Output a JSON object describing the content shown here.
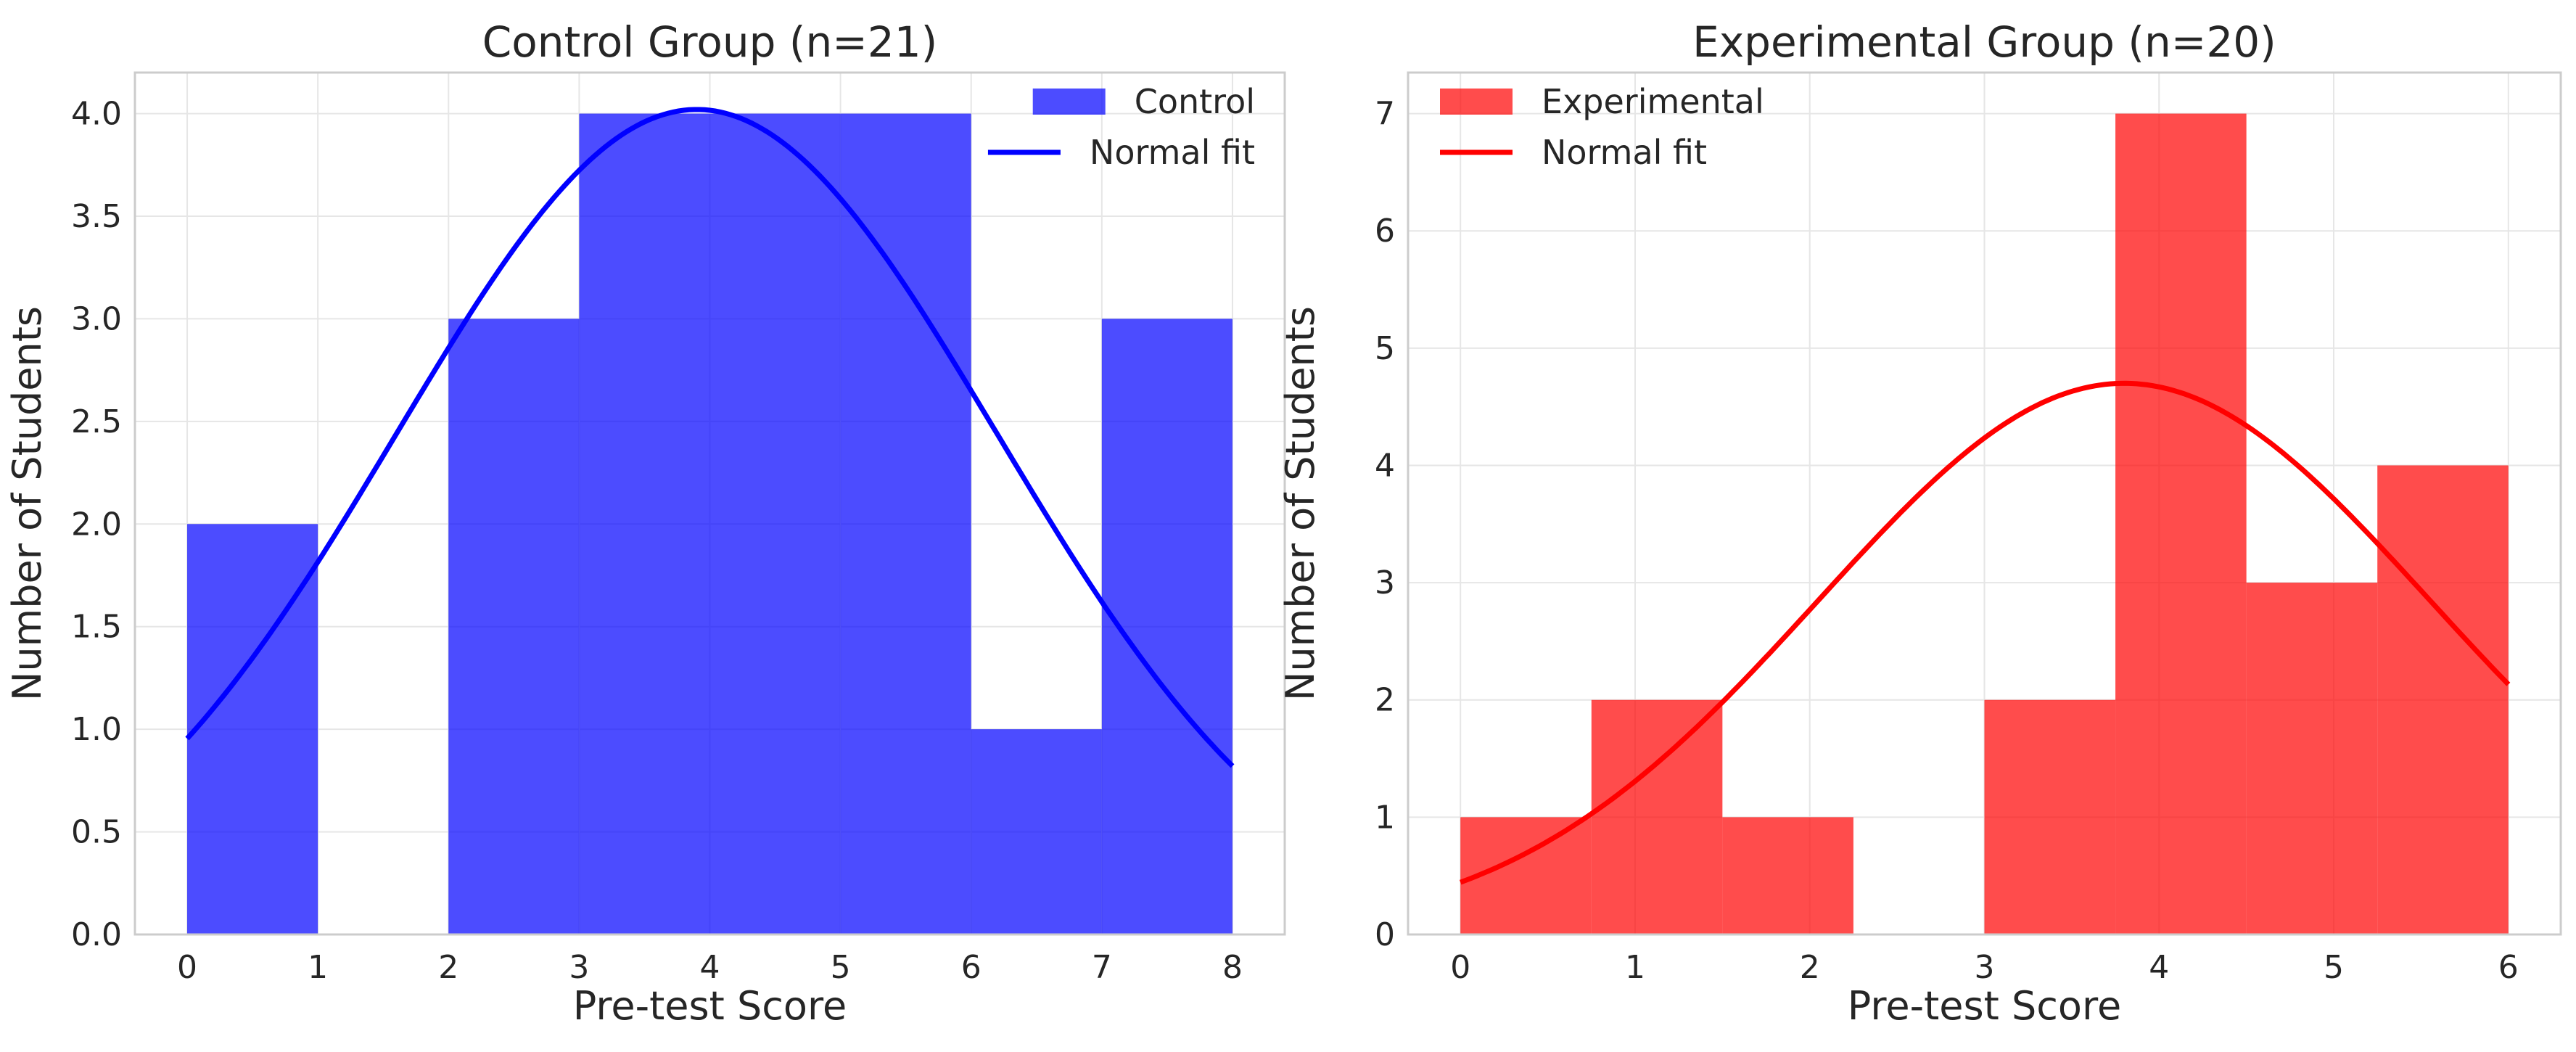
{
  "chart_data": [
    {
      "type": "bar",
      "title": "Control Group (n=21)",
      "xlabel": "Pre-test Score",
      "ylabel": "Number of Students",
      "xlim": [
        -0.4,
        8.4
      ],
      "ylim": [
        0,
        4.2
      ],
      "xticks": [
        0,
        1,
        2,
        3,
        4,
        5,
        6,
        7,
        8
      ],
      "xtick_labels": [
        "0",
        "1",
        "2",
        "3",
        "4",
        "5",
        "6",
        "7",
        "8"
      ],
      "yticks": [
        0,
        0.5,
        1,
        1.5,
        2,
        2.5,
        3,
        3.5,
        4
      ],
      "ytick_labels": [
        "0.0",
        "0.5",
        "1.0",
        "1.5",
        "2.0",
        "2.5",
        "3.0",
        "3.5",
        "4.0"
      ],
      "grid": true,
      "legend_position": "top-right",
      "bins": [
        {
          "x0": 0,
          "x1": 1,
          "count": 2
        },
        {
          "x0": 1,
          "x1": 2,
          "count": 0
        },
        {
          "x0": 2,
          "x1": 3,
          "count": 3
        },
        {
          "x0": 3,
          "x1": 4,
          "count": 4
        },
        {
          "x0": 4,
          "x1": 5,
          "count": 4
        },
        {
          "x0": 5,
          "x1": 6,
          "count": 4
        },
        {
          "x0": 6,
          "x1": 7,
          "count": 1
        },
        {
          "x0": 7,
          "x1": 8,
          "count": 3
        }
      ],
      "fit": {
        "mean": 3.9,
        "std": 2.3,
        "peak": 4.02,
        "x_range": [
          0,
          8
        ]
      },
      "series": [
        {
          "name": "Control",
          "kind": "histogram",
          "color": "#0000ff",
          "opacity": 0.7
        },
        {
          "name": "Normal fit",
          "kind": "line",
          "color": "#0000ff"
        }
      ]
    },
    {
      "type": "bar",
      "title": "Experimental Group (n=20)",
      "xlabel": "Pre-test Score",
      "ylabel": "Number of Students",
      "xlim": [
        -0.3,
        6.3
      ],
      "ylim": [
        0,
        7.35
      ],
      "xticks": [
        0,
        1,
        2,
        3,
        4,
        5,
        6
      ],
      "xtick_labels": [
        "0",
        "1",
        "2",
        "3",
        "4",
        "5",
        "6"
      ],
      "yticks": [
        0,
        1,
        2,
        3,
        4,
        5,
        6,
        7
      ],
      "ytick_labels": [
        "0",
        "1",
        "2",
        "3",
        "4",
        "5",
        "6",
        "7"
      ],
      "grid": true,
      "legend_position": "top-left",
      "bins": [
        {
          "x0": 0,
          "x1": 0.75,
          "count": 1
        },
        {
          "x0": 0.75,
          "x1": 1.5,
          "count": 2
        },
        {
          "x0": 1.5,
          "x1": 2.25,
          "count": 1
        },
        {
          "x0": 2.25,
          "x1": 3.0,
          "count": 0
        },
        {
          "x0": 3.0,
          "x1": 3.75,
          "count": 2
        },
        {
          "x0": 3.75,
          "x1": 4.5,
          "count": 7
        },
        {
          "x0": 4.5,
          "x1": 5.25,
          "count": 3
        },
        {
          "x0": 5.25,
          "x1": 6.0,
          "count": 4
        }
      ],
      "fit": {
        "mean": 3.8,
        "std": 1.75,
        "peak": 4.7,
        "x_range": [
          0,
          6
        ]
      },
      "series": [
        {
          "name": "Experimental",
          "kind": "histogram",
          "color": "#ff0000",
          "opacity": 0.7
        },
        {
          "name": "Normal fit",
          "kind": "line",
          "color": "#ff0000"
        }
      ]
    }
  ]
}
